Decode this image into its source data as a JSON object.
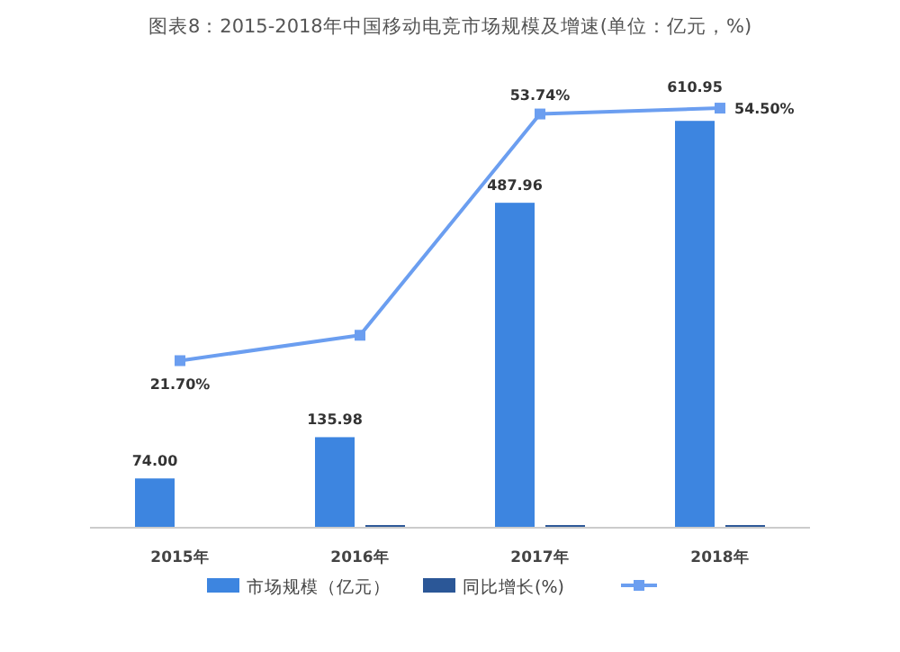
{
  "chart_data": {
    "type": "bar",
    "title": "图表8：2015-2018年中国移动电竞市场规模及增速(单位：亿元，%)",
    "categories": [
      "2015年",
      "2016年",
      "2017年",
      "2018年"
    ],
    "series": [
      {
        "name": "市场规模（亿元）",
        "color": "#3d85e0",
        "values": [
          74.0,
          135.98,
          487.96,
          610.95
        ],
        "value_labels": [
          "74.00",
          "135.98",
          "487.96",
          "610.95"
        ]
      },
      {
        "name": "同比增长(%)",
        "color": "#2b5797",
        "values": [
          null,
          4,
          4,
          4
        ]
      },
      {
        "type": "line",
        "axis": "y2",
        "color": "#6b9ef0",
        "values": [
          21.7,
          25,
          53.74,
          54.5
        ],
        "value_labels": [
          "21.70%",
          null,
          "53.74%",
          "54.50%"
        ]
      }
    ],
    "marker": "square",
    "legend": "bottom"
  }
}
